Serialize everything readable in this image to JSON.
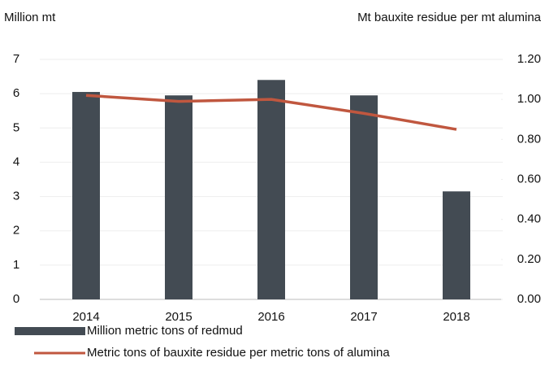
{
  "chart_data": {
    "type": "bar",
    "y_label": "Million mt",
    "y2_label": "Mt bauxite residue per mt alumina",
    "categories": [
      "2014",
      "2015",
      "2016",
      "2017",
      "2018"
    ],
    "series": [
      {
        "name": "Million metric tons of redmud",
        "type": "bar",
        "color": "#434b53",
        "values": [
          6.05,
          5.95,
          6.4,
          5.95,
          3.15
        ]
      },
      {
        "name": "Metric tons of bauxite residue per metric tons of alumina",
        "type": "line",
        "axis": "y2",
        "color": "#c0573f",
        "values": [
          1.02,
          0.99,
          1.0,
          0.93,
          0.85
        ]
      }
    ],
    "ylim": [
      0,
      7
    ],
    "yticks": [
      0,
      1,
      2,
      3,
      4,
      5,
      6,
      7
    ],
    "y2lim": [
      0,
      1.2
    ],
    "y2ticks": [
      {
        "value": 0,
        "label": "0.00"
      },
      {
        "value": 0.2,
        "label": "0.20"
      },
      {
        "value": 0.4,
        "label": "0.40"
      },
      {
        "value": 0.6,
        "label": "0.60"
      },
      {
        "value": 0.8,
        "label": "0.80"
      },
      {
        "value": 1.0,
        "label": "1.00"
      },
      {
        "value": 1.2,
        "label": "1.20"
      }
    ],
    "grid": true,
    "legend": "bottom-left"
  }
}
